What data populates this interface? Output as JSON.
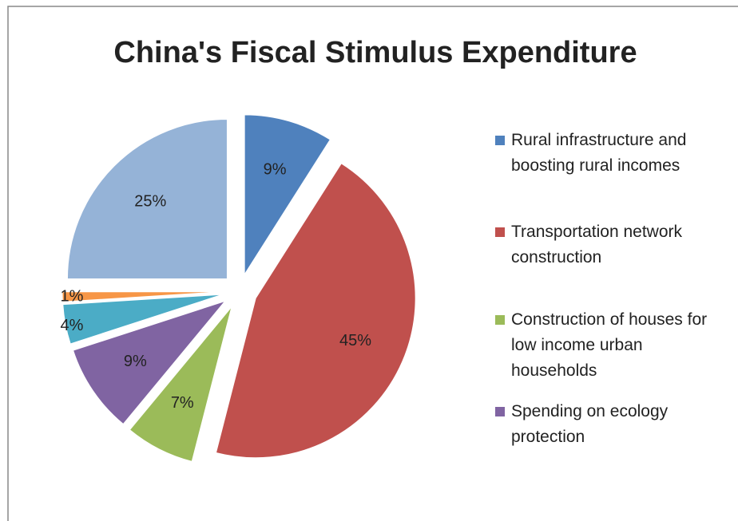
{
  "chart_data": {
    "type": "pie",
    "title": "China's Fiscal Stimulus Expenditure",
    "categories": [
      "Rural infrastructure and boosting rural incomes",
      "Transportation network construction",
      "Construction of houses for low income urban households",
      "Spending on ecology protection",
      null,
      null,
      null
    ],
    "values": [
      9,
      45,
      7,
      9,
      4,
      1,
      25
    ],
    "value_labels": [
      "9%",
      "45%",
      "7%",
      "9%",
      "4%",
      "1%",
      "25%"
    ],
    "colors": [
      "#4f81bd",
      "#c0504d",
      "#9bbb59",
      "#8064a2",
      "#4bacc6",
      "#f79646",
      "#95b3d7"
    ]
  }
}
